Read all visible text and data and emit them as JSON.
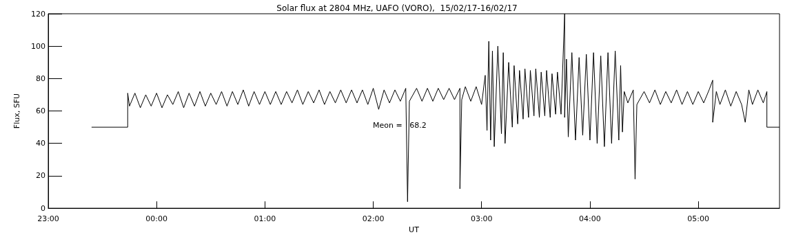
{
  "chart_data": {
    "type": "line",
    "title": "Solar flux at 2804 MHz, UAFO (VORO),  15/02/17-16/02/17",
    "xlabel": "UT",
    "ylabel": "Flux, SFU",
    "annotations": [
      "Meon =   68.2"
    ],
    "xlim": [
      "--02-15T23:00",
      "--02-16T05:45"
    ],
    "xticks": [
      {
        "value": "--02-15T23:00",
        "label": "23:00"
      },
      {
        "value": "--02-16T00:00",
        "label": "00:00"
      },
      {
        "value": "--02-16T01:00",
        "label": "01:00"
      },
      {
        "value": "--02-16T02:00",
        "label": "02:00"
      },
      {
        "value": "--02-16T03:00",
        "label": "03:00"
      },
      {
        "value": "--02-16T04:00",
        "label": "04:00"
      },
      {
        "value": "--02-16T05:00",
        "label": "05:00"
      }
    ],
    "ylim": [
      0,
      120
    ],
    "yticks": [
      0,
      20,
      40,
      60,
      80,
      100,
      120
    ],
    "marker": "none",
    "line_style": "solid",
    "series": [
      {
        "color": "#000000",
        "x": [
          "--02-15T23:24",
          "--02-15T23:44",
          "--02-15T23:44",
          "--02-15T23:45",
          "--02-15T23:48",
          "--02-15T23:51",
          "--02-15T23:54",
          "--02-15T23:57",
          "--02-16T00:00",
          "--02-16T00:03",
          "--02-16T00:06",
          "--02-16T00:09",
          "--02-16T00:12",
          "--02-16T00:15",
          "--02-16T00:18",
          "--02-16T00:21",
          "--02-16T00:24",
          "--02-16T00:27",
          "--02-16T00:30",
          "--02-16T00:33",
          "--02-16T00:36",
          "--02-16T00:39",
          "--02-16T00:42",
          "--02-16T00:45",
          "--02-16T00:48",
          "--02-16T00:51",
          "--02-16T00:54",
          "--02-16T00:57",
          "--02-16T01:00",
          "--02-16T01:03",
          "--02-16T01:06",
          "--02-16T01:09",
          "--02-16T01:12",
          "--02-16T01:15",
          "--02-16T01:18",
          "--02-16T01:21",
          "--02-16T01:24",
          "--02-16T01:27",
          "--02-16T01:30",
          "--02-16T01:33",
          "--02-16T01:36",
          "--02-16T01:39",
          "--02-16T01:42",
          "--02-16T01:45",
          "--02-16T01:48",
          "--02-16T01:51",
          "--02-16T01:54",
          "--02-16T01:57",
          "--02-16T02:00",
          "--02-16T02:03",
          "--02-16T02:06",
          "--02-16T02:09",
          "--02-16T02:12",
          "--02-16T02:15",
          "--02-16T02:18",
          "--02-16T02:19",
          "--02-16T02:20",
          "--02-16T02:24",
          "--02-16T02:27",
          "--02-16T02:30",
          "--02-16T02:33",
          "--02-16T02:36",
          "--02-16T02:39",
          "--02-16T02:42",
          "--02-16T02:45",
          "--02-16T02:48",
          "--02-16T02:48",
          "--02-16T02:49",
          "--02-16T02:51",
          "--02-16T02:54",
          "--02-16T02:57",
          "--02-16T03:00",
          "--02-16T03:02",
          "--02-16T03:03",
          "--02-16T03:04",
          "--02-16T03:05",
          "--02-16T03:06",
          "--02-16T03:07",
          "--02-16T03:09",
          "--02-16T03:11",
          "--02-16T03:12",
          "--02-16T03:13",
          "--02-16T03:15",
          "--02-16T03:17",
          "--02-16T03:18",
          "--02-16T03:20",
          "--02-16T03:21",
          "--02-16T03:23",
          "--02-16T03:24",
          "--02-16T03:26",
          "--02-16T03:27",
          "--02-16T03:29",
          "--02-16T03:30",
          "--02-16T03:32",
          "--02-16T03:33",
          "--02-16T03:35",
          "--02-16T03:36",
          "--02-16T03:38",
          "--02-16T03:39",
          "--02-16T03:41",
          "--02-16T03:42",
          "--02-16T03:44",
          "--02-16T03:46",
          "--02-16T03:46",
          "--02-16T03:47",
          "--02-16T03:48",
          "--02-16T03:50",
          "--02-16T03:52",
          "--02-16T03:54",
          "--02-16T03:56",
          "--02-16T03:58",
          "--02-16T04:00",
          "--02-16T04:02",
          "--02-16T04:04",
          "--02-16T04:06",
          "--02-16T04:08",
          "--02-16T04:10",
          "--02-16T04:12",
          "--02-16T04:14",
          "--02-16T04:16",
          "--02-16T04:17",
          "--02-16T04:18",
          "--02-16T04:19",
          "--02-16T04:21",
          "--02-16T04:24",
          "--02-16T04:25",
          "--02-16T04:26",
          "--02-16T04:30",
          "--02-16T04:33",
          "--02-16T04:36",
          "--02-16T04:39",
          "--02-16T04:42",
          "--02-16T04:45",
          "--02-16T04:48",
          "--02-16T04:51",
          "--02-16T04:54",
          "--02-16T04:57",
          "--02-16T05:00",
          "--02-16T05:03",
          "--02-16T05:06",
          "--02-16T05:08",
          "--02-16T05:08",
          "--02-16T05:10",
          "--02-16T05:12",
          "--02-16T05:15",
          "--02-16T05:18",
          "--02-16T05:21",
          "--02-16T05:24",
          "--02-16T05:26",
          "--02-16T05:28",
          "--02-16T05:30",
          "--02-16T05:33",
          "--02-16T05:36",
          "--02-16T05:38",
          "--02-16T05:38",
          "--02-16T05:45"
        ],
        "values": [
          50,
          50,
          71,
          63,
          71,
          62,
          70,
          63,
          71,
          62,
          70,
          64,
          72,
          62,
          71,
          63,
          72,
          63,
          71,
          64,
          72,
          63,
          72,
          64,
          73,
          63,
          72,
          64,
          72,
          64,
          72,
          64,
          72,
          65,
          73,
          64,
          72,
          65,
          73,
          64,
          72,
          65,
          73,
          65,
          73,
          65,
          73,
          64,
          74,
          61,
          73,
          65,
          73,
          66,
          74,
          4,
          66,
          74,
          66,
          74,
          66,
          74,
          67,
          74,
          67,
          74,
          12,
          67,
          75,
          66,
          75,
          64,
          82,
          48,
          103,
          42,
          97,
          38,
          100,
          46,
          96,
          40,
          90,
          50,
          88,
          52,
          85,
          55,
          86,
          56,
          85,
          57,
          86,
          56,
          84,
          57,
          85,
          56,
          83,
          58,
          84,
          58,
          120,
          56,
          92,
          44,
          96,
          42,
          93,
          45,
          95,
          42,
          96,
          40,
          94,
          38,
          96,
          40,
          97,
          42,
          88,
          47,
          72,
          65,
          73,
          18,
          64,
          72,
          65,
          73,
          64,
          72,
          65,
          73,
          64,
          72,
          64,
          72,
          65,
          73,
          79,
          53,
          72,
          64,
          73,
          63,
          72,
          64,
          53,
          73,
          64,
          73,
          65,
          72,
          50,
          50
        ]
      }
    ]
  }
}
